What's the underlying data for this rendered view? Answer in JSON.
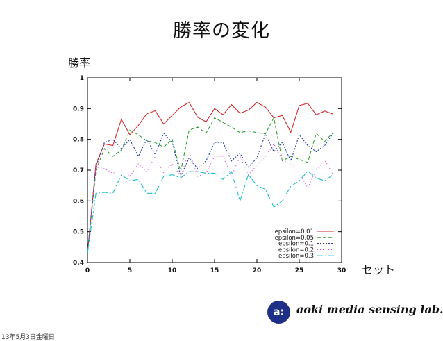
{
  "slide": {
    "title": "勝率の変化",
    "date": "13年5月3日金曜日"
  },
  "logo": {
    "mark": "a:",
    "text": "aoki media sensing lab."
  },
  "chart_data": {
    "type": "line",
    "title": "",
    "xlabel": "セット",
    "ylabel": "勝率",
    "xlim": [
      0,
      30
    ],
    "ylim": [
      0.4,
      1.0
    ],
    "xticks": [
      0,
      5,
      10,
      15,
      20,
      25,
      30
    ],
    "yticks": [
      0.4,
      0.5,
      0.6,
      0.7,
      0.8,
      0.9,
      1.0
    ],
    "ytick_labels": [
      "0.4",
      "0.5",
      "0.6",
      "0.7",
      "0.8",
      "0.9",
      "1"
    ],
    "grid": false,
    "legend_position": "bottom-right",
    "x": [
      0,
      1,
      2,
      3,
      4,
      5,
      6,
      7,
      8,
      9,
      10,
      11,
      12,
      13,
      14,
      15,
      16,
      17,
      18,
      19,
      20,
      21,
      22,
      23,
      24,
      25,
      26,
      27,
      28,
      29
    ],
    "series": [
      {
        "name": "epsilon=0.01",
        "color": "#d62728",
        "dash": "solid",
        "values": [
          0.43,
          0.72,
          0.785,
          0.78,
          0.865,
          0.815,
          0.845,
          0.883,
          0.893,
          0.85,
          0.878,
          0.905,
          0.92,
          0.872,
          0.857,
          0.9,
          0.88,
          0.913,
          0.885,
          0.895,
          0.92,
          0.905,
          0.87,
          0.878,
          0.823,
          0.91,
          0.917,
          0.88,
          0.892,
          0.882
        ]
      },
      {
        "name": "epsilon=0.05",
        "color": "#2ca02c",
        "dash": "5,3",
        "values": [
          0.43,
          0.7,
          0.77,
          0.745,
          0.765,
          0.83,
          0.815,
          0.795,
          0.79,
          0.775,
          0.8,
          0.695,
          0.83,
          0.84,
          0.82,
          0.87,
          0.855,
          0.84,
          0.822,
          0.828,
          0.822,
          0.818,
          0.87,
          0.73,
          0.745,
          0.735,
          0.725,
          0.82,
          0.793,
          0.823
        ]
      },
      {
        "name": "epsilon=0.1",
        "color": "#1f3fb4",
        "dash": "2,2",
        "values": [
          0.43,
          0.71,
          0.79,
          0.8,
          0.77,
          0.8,
          0.745,
          0.8,
          0.75,
          0.82,
          0.79,
          0.68,
          0.74,
          0.705,
          0.73,
          0.79,
          0.79,
          0.73,
          0.755,
          0.71,
          0.74,
          0.817,
          0.76,
          0.79,
          0.73,
          0.815,
          0.78,
          0.76,
          0.78,
          0.82
        ]
      },
      {
        "name": "epsilon=0.2",
        "color": "#dd44dd",
        "dash": "1,3",
        "values": [
          0.43,
          0.71,
          0.705,
          0.69,
          0.7,
          0.68,
          0.72,
          0.695,
          0.745,
          0.69,
          0.72,
          0.68,
          0.76,
          0.68,
          0.69,
          0.745,
          0.745,
          0.68,
          0.745,
          0.685,
          0.715,
          0.745,
          0.785,
          0.735,
          0.718,
          0.69,
          0.643,
          0.7,
          0.733,
          0.685
        ]
      },
      {
        "name": "epsilon=0.3",
        "color": "#17becf",
        "dash": "8,3,2,3",
        "values": [
          0.43,
          0.625,
          0.628,
          0.625,
          0.685,
          0.665,
          0.67,
          0.625,
          0.625,
          0.68,
          0.685,
          0.675,
          0.695,
          0.695,
          0.69,
          0.69,
          0.67,
          0.695,
          0.6,
          0.685,
          0.65,
          0.638,
          0.58,
          0.6,
          0.648,
          0.665,
          0.697,
          0.675,
          0.665,
          0.685
        ]
      }
    ]
  }
}
